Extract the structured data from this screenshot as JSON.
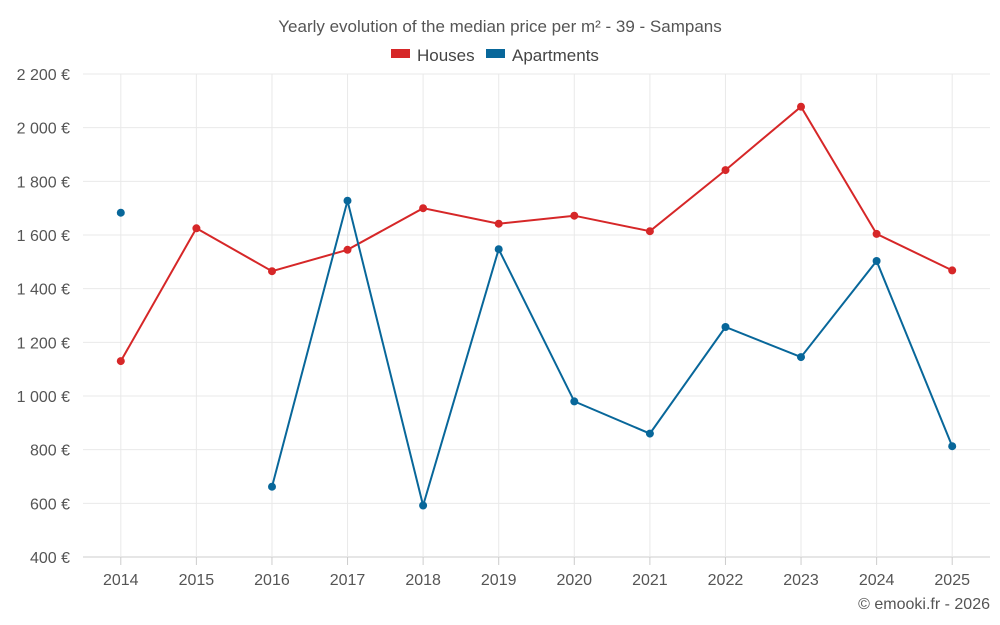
{
  "chart_data": {
    "type": "line",
    "title": "Yearly evolution of the median price per m² - 39 - Sampans",
    "categories": [
      "2014",
      "2015",
      "2016",
      "2017",
      "2018",
      "2019",
      "2020",
      "2021",
      "2022",
      "2023",
      "2024",
      "2025"
    ],
    "series": [
      {
        "name": "Houses",
        "color": "#d62728",
        "values": [
          1130,
          1625,
          1465,
          1545,
          1700,
          1642,
          1672,
          1614,
          1842,
          2078,
          1604,
          1468
        ]
      },
      {
        "name": "Apartments",
        "color": "#08679a",
        "values": [
          1683,
          null,
          662,
          1728,
          592,
          1547,
          980,
          860,
          1257,
          1145,
          1503,
          813
        ]
      }
    ],
    "ylim": [
      400,
      2200
    ],
    "yticks": [
      400,
      600,
      800,
      1000,
      1200,
      1400,
      1600,
      1800,
      2000,
      2200
    ],
    "ytick_labels": [
      "400 €",
      "600 €",
      "800 €",
      "1 000 €",
      "1 200 €",
      "1 400 €",
      "1 600 €",
      "1 800 €",
      "2 000 €",
      "2 200 €"
    ],
    "xlabel": "",
    "ylabel": "",
    "grid": true,
    "legend": "top-center"
  },
  "credit": "© emooki.fr - 2026"
}
